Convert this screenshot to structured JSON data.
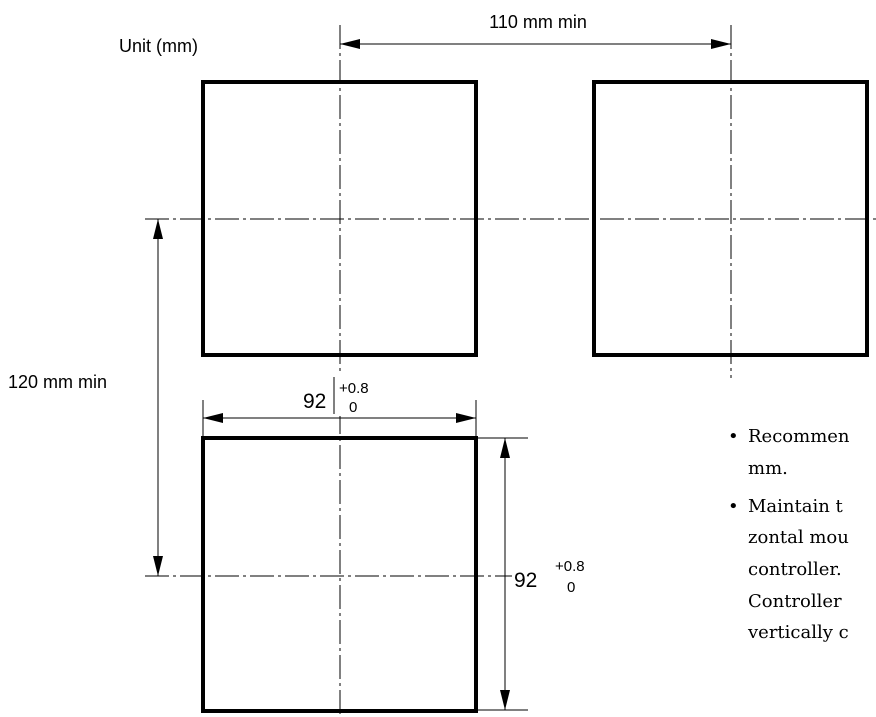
{
  "unit_label": "Unit (mm)",
  "dimensions": {
    "horizontal_pitch": "110 mm min",
    "vertical_pitch": "120 mm min",
    "cutout_width": {
      "value": "92",
      "upper_tol": "+0.8",
      "lower_tol": "0"
    },
    "cutout_height": {
      "value": "92",
      "upper_tol": "+0.8",
      "lower_tol": "0"
    }
  },
  "notes": [
    {
      "bullet": "•",
      "lines": [
        "Recommen",
        "mm."
      ]
    },
    {
      "bullet": "•",
      "lines": [
        "Maintain t",
        "zontal mou",
        "controller.",
        "Controller",
        "vertically c"
      ]
    }
  ]
}
